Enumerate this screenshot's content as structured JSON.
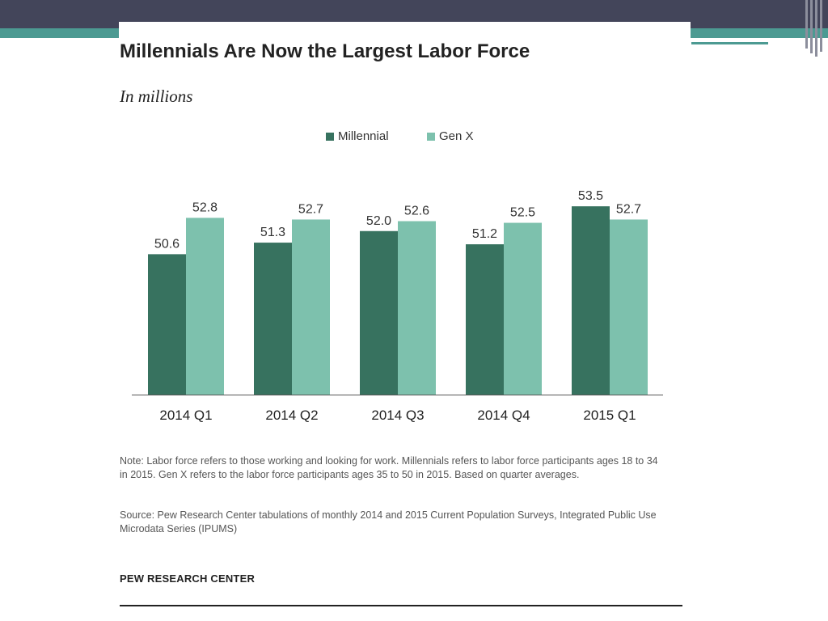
{
  "colors": {
    "millennial": "#37725f",
    "genx": "#7dc1ad",
    "topbar": "#43455a",
    "accent": "#4c9a92"
  },
  "chart_data": {
    "type": "bar",
    "title": "Millennials Are Now the Largest Labor Force",
    "subtitle": "In millions",
    "categories": [
      "2014 Q1",
      "2014 Q2",
      "2014 Q3",
      "2014 Q4",
      "2015 Q1"
    ],
    "series": [
      {
        "name": "Millennial",
        "values": [
          50.6,
          51.3,
          52.0,
          51.2,
          53.5
        ],
        "labels": [
          "50.6",
          "51.3",
          "52.0",
          "51.2",
          "53.5"
        ]
      },
      {
        "name": "Gen X",
        "values": [
          52.8,
          52.7,
          52.6,
          52.5,
          52.7
        ],
        "labels": [
          "52.8",
          "52.7",
          "52.6",
          "52.5",
          "52.7"
        ]
      }
    ],
    "legend": "top-center",
    "grid": false,
    "ylim": [
      42.1,
      53.8
    ]
  },
  "note": "Note: Labor force refers to those working and looking for work. Millennials refers to labor force participants ages 18 to 34 in 2015. Gen X refers to the labor force participants ages 35 to 50 in 2015. Based on quarter averages.",
  "source": "Source: Pew Research Center tabulations of monthly 2014 and 2015 Current Population Surveys, Integrated Public Use Microdata Series (IPUMS)",
  "brand": "PEW RESEARCH CENTER"
}
